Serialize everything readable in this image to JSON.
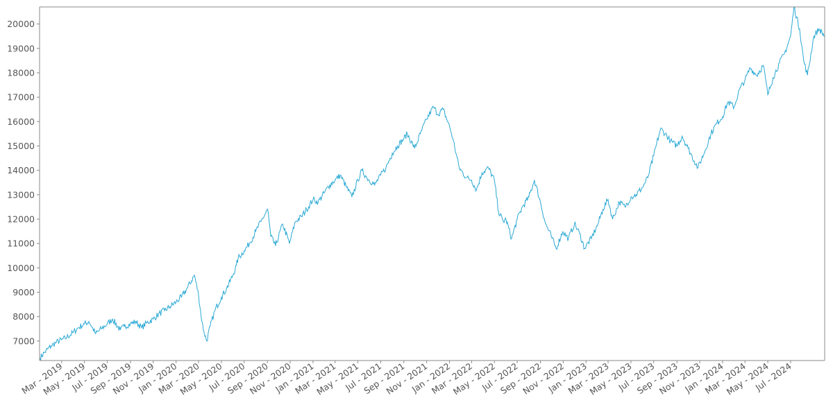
{
  "chart_data": {
    "type": "line",
    "title": "",
    "xlabel": "",
    "ylabel": "",
    "x_ticks": [
      "Mar - 2019",
      "May - 2019",
      "Jul - 2019",
      "Sep - 2019",
      "Nov - 2019",
      "Jan - 2020",
      "Mar - 2020",
      "May - 2020",
      "Jul - 2020",
      "Sep - 2020",
      "Nov - 2020",
      "Jan - 2021",
      "Mar - 2021",
      "May - 2021",
      "Jul - 2021",
      "Sep - 2021",
      "Nov - 2021",
      "Jan - 2022",
      "Mar - 2022",
      "May - 2022",
      "Jul - 2022",
      "Sep - 2022",
      "Nov - 2022",
      "Jan - 2023",
      "Mar - 2023",
      "May - 2023",
      "Jul - 2023",
      "Sep - 2023",
      "Nov - 2023",
      "Jan - 2024",
      "Mar - 2024",
      "May - 2024",
      "Jul - 2024"
    ],
    "y_ticks": [
      7000,
      8000,
      9000,
      10000,
      11000,
      12000,
      13000,
      14000,
      15000,
      16000,
      17000,
      18000,
      19000,
      20000
    ],
    "xlim": [
      "2019-01-01",
      "2024-09-30"
    ],
    "ylim": [
      6200,
      20700
    ],
    "grid": false,
    "series": [
      {
        "color": "#29a8d4",
        "x": [
          "2019-01-02",
          "2019-01-15",
          "2019-02-01",
          "2019-02-15",
          "2019-03-01",
          "2019-03-15",
          "2019-04-01",
          "2019-04-15",
          "2019-05-01",
          "2019-05-13",
          "2019-05-31",
          "2019-06-15",
          "2019-07-01",
          "2019-07-15",
          "2019-08-05",
          "2019-08-15",
          "2019-09-01",
          "2019-09-15",
          "2019-10-01",
          "2019-10-15",
          "2019-11-01",
          "2019-11-15",
          "2019-12-01",
          "2019-12-15",
          "2020-01-01",
          "2020-01-15",
          "2020-02-01",
          "2020-02-19",
          "2020-03-01",
          "2020-03-10",
          "2020-03-16",
          "2020-03-23",
          "2020-04-01",
          "2020-04-15",
          "2020-05-01",
          "2020-05-15",
          "2020-06-01",
          "2020-06-10",
          "2020-06-15",
          "2020-07-01",
          "2020-07-15",
          "2020-08-01",
          "2020-08-15",
          "2020-09-02",
          "2020-09-10",
          "2020-09-23",
          "2020-10-12",
          "2020-10-30",
          "2020-11-15",
          "2020-12-01",
          "2020-12-15",
          "2021-01-01",
          "2021-01-15",
          "2021-02-01",
          "2021-02-15",
          "2021-03-01",
          "2021-03-15",
          "2021-04-01",
          "2021-04-15",
          "2021-05-01",
          "2021-05-12",
          "2021-05-25",
          "2021-06-15",
          "2021-07-01",
          "2021-07-15",
          "2021-08-01",
          "2021-08-15",
          "2021-09-01",
          "2021-09-10",
          "2021-09-30",
          "2021-10-15",
          "2021-11-01",
          "2021-11-19",
          "2021-12-01",
          "2021-12-15",
          "2022-01-01",
          "2022-01-10",
          "2022-01-27",
          "2022-02-15",
          "2022-03-01",
          "2022-03-14",
          "2022-03-29",
          "2022-04-15",
          "2022-05-01",
          "2022-05-12",
          "2022-05-25",
          "2022-06-01",
          "2022-06-16",
          "2022-07-01",
          "2022-07-15",
          "2022-08-01",
          "2022-08-16",
          "2022-09-01",
          "2022-09-15",
          "2022-09-30",
          "2022-10-13",
          "2022-10-31",
          "2022-11-15",
          "2022-12-01",
          "2022-12-15",
          "2022-12-28",
          "2023-01-15",
          "2023-02-02",
          "2023-02-15",
          "2023-03-01",
          "2023-03-13",
          "2023-03-31",
          "2023-04-15",
          "2023-05-01",
          "2023-05-15",
          "2023-06-01",
          "2023-06-15",
          "2023-07-01",
          "2023-07-19",
          "2023-08-01",
          "2023-08-15",
          "2023-09-01",
          "2023-09-15",
          "2023-10-01",
          "2023-10-27",
          "2023-11-15",
          "2023-12-01",
          "2023-12-15",
          "2024-01-01",
          "2024-01-15",
          "2024-02-01",
          "2024-02-15",
          "2024-03-01",
          "2024-03-15",
          "2024-04-01",
          "2024-04-19",
          "2024-05-01",
          "2024-05-15",
          "2024-06-01",
          "2024-06-15",
          "2024-07-01",
          "2024-07-10",
          "2024-07-25",
          "2024-08-05",
          "2024-08-15",
          "2024-09-01",
          "2024-09-15",
          "2024-09-30"
        ],
        "y": [
          6300,
          6550,
          6800,
          6950,
          7050,
          7150,
          7350,
          7550,
          7700,
          7800,
          7300,
          7500,
          7700,
          7900,
          7450,
          7600,
          7700,
          7800,
          7550,
          7750,
          7900,
          8100,
          8250,
          8400,
          8600,
          8800,
          9200,
          9700,
          8900,
          7800,
          7350,
          7000,
          7600,
          8300,
          8800,
          9150,
          9700,
          10100,
          10400,
          10700,
          11000,
          11500,
          11900,
          12400,
          11300,
          10900,
          11800,
          11000,
          11900,
          12100,
          12400,
          12800,
          12700,
          13100,
          13400,
          13600,
          13800,
          13300,
          12900,
          13600,
          14000,
          13700,
          13400,
          13800,
          14100,
          14700,
          15000,
          15300,
          15500,
          14900,
          15500,
          16100,
          16600,
          16300,
          16500,
          15800,
          15300,
          14100,
          13700,
          13600,
          13200,
          13900,
          14100,
          13600,
          12300,
          11900,
          12000,
          11200,
          12000,
          12500,
          12900,
          13600,
          12700,
          11800,
          11300,
          10800,
          11500,
          11200,
          11800,
          11400,
          10800,
          11200,
          11800,
          12400,
          12800,
          12000,
          12700,
          12500,
          12900,
          13000,
          13300,
          13700,
          14600,
          15700,
          15500,
          15200,
          15000,
          15400,
          14900,
          14100,
          14800,
          15500,
          15900,
          16200,
          16800,
          16600,
          17300,
          17700,
          18200,
          17900,
          18300,
          17100,
          17800,
          18400,
          18800,
          19500,
          20700,
          19800,
          18500,
          17900,
          19500,
          19800,
          19500
        ]
      }
    ]
  }
}
